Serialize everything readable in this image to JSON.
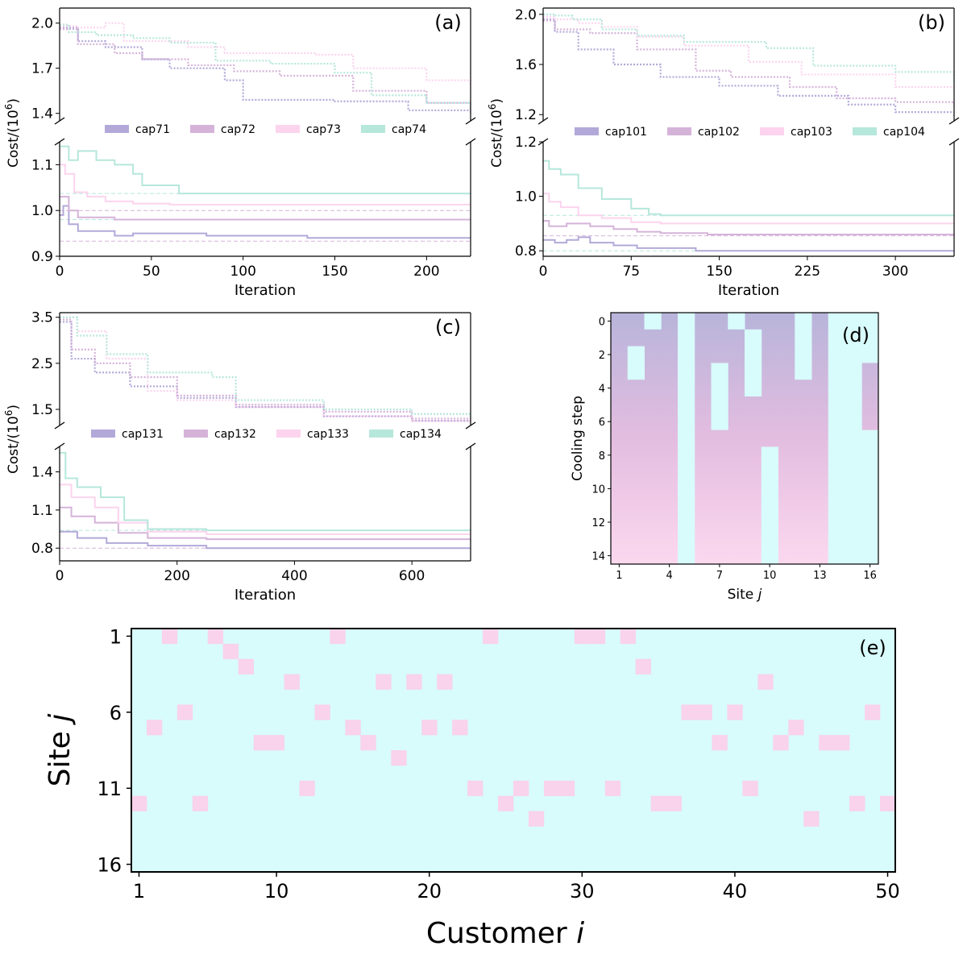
{
  "colors": {
    "purple": "#b3a9d9",
    "mauve": "#d5b3d9",
    "pink": "#fcd4ee",
    "teal": "#b6e7db",
    "cyan": "#d8fbfb",
    "cellpink": "#f9d2ec"
  },
  "chart_data": [
    {
      "panel": "(a)",
      "type": "line",
      "ylabel": "Cost/(10^6)",
      "xlabel": "Iteration",
      "xlim": [
        0,
        224
      ],
      "xticks": [
        0,
        50,
        100,
        150,
        200
      ],
      "upper": {
        "ylim": [
          1.35,
          2.1
        ],
        "yticks": [
          1.4,
          1.7,
          2.0
        ],
        "series": [
          {
            "name": "cap71",
            "x": [
              0,
              10,
              25,
              45,
              60,
              90,
              100,
              150,
              190,
              224
            ],
            "y": [
              1.97,
              1.88,
              1.84,
              1.76,
              1.7,
              1.62,
              1.49,
              1.48,
              1.42,
              1.4
            ]
          },
          {
            "name": "cap72",
            "x": [
              0,
              10,
              30,
              45,
              70,
              95,
              120,
              160,
              200,
              224
            ],
            "y": [
              1.96,
              1.86,
              1.8,
              1.76,
              1.72,
              1.68,
              1.65,
              1.55,
              1.47,
              1.4
            ]
          },
          {
            "name": "cap73",
            "x": [
              0,
              10,
              25,
              35,
              70,
              90,
              140,
              160,
              200,
              224
            ],
            "y": [
              1.98,
              1.97,
              2.0,
              1.88,
              1.84,
              1.8,
              1.79,
              1.7,
              1.62,
              1.59
            ]
          },
          {
            "name": "cap74",
            "x": [
              0,
              5,
              20,
              40,
              60,
              85,
              115,
              150,
              170,
              200,
              224
            ],
            "y": [
              1.99,
              1.94,
              1.92,
              1.9,
              1.87,
              1.75,
              1.73,
              1.67,
              1.52,
              1.47,
              1.43
            ]
          }
        ]
      },
      "lower": {
        "ylim": [
          0.9,
          1.15
        ],
        "yticks": [
          0.9,
          1.0,
          1.1
        ],
        "series": [
          {
            "name": "cap71",
            "x": [
              0,
              2,
              5,
              10,
              30,
              40,
              80,
              135,
              224
            ],
            "y": [
              0.99,
              1.01,
              0.97,
              0.955,
              0.945,
              0.95,
              0.945,
              0.94,
              0.94
            ]
          },
          {
            "name": "cap72",
            "x": [
              0,
              5,
              10,
              30,
              60,
              190,
              224
            ],
            "y": [
              1.03,
              1.0,
              0.985,
              0.98,
              0.98,
              0.98,
              0.98
            ]
          },
          {
            "name": "cap73",
            "x": [
              0,
              3,
              8,
              15,
              25,
              40,
              60,
              224
            ],
            "y": [
              1.1,
              1.08,
              1.04,
              1.03,
              1.02,
              1.015,
              1.013,
              1.013
            ]
          },
          {
            "name": "cap74",
            "x": [
              0,
              5,
              10,
              20,
              30,
              40,
              45,
              60,
              65,
              224
            ],
            "y": [
              1.14,
              1.11,
              1.13,
              1.11,
              1.1,
              1.08,
              1.055,
              1.055,
              1.037,
              1.037
            ]
          }
        ],
        "references": [
          1.037,
          1.0,
          0.98,
          0.933
        ]
      }
    },
    {
      "panel": "(b)",
      "type": "line",
      "ylabel": "Cost/(10^6)",
      "xlabel": "Iteration",
      "xlim": [
        0,
        350
      ],
      "xticks": [
        0,
        75,
        150,
        225,
        300
      ],
      "upper": {
        "ylim": [
          1.15,
          2.05
        ],
        "yticks": [
          1.2,
          1.6,
          2.0
        ],
        "series": [
          {
            "name": "cap101",
            "x": [
              0,
              10,
              30,
              60,
              100,
              150,
              200,
              260,
              300,
              350
            ],
            "y": [
              1.96,
              1.86,
              1.72,
              1.6,
              1.5,
              1.43,
              1.35,
              1.28,
              1.22,
              1.18
            ]
          },
          {
            "name": "cap102",
            "x": [
              0,
              10,
              40,
              80,
              130,
              160,
              210,
              250,
              300,
              350
            ],
            "y": [
              1.95,
              1.88,
              1.85,
              1.72,
              1.55,
              1.5,
              1.42,
              1.33,
              1.3,
              1.26
            ]
          },
          {
            "name": "cap103",
            "x": [
              0,
              10,
              30,
              50,
              80,
              120,
              175,
              220,
              300,
              350
            ],
            "y": [
              1.98,
              1.96,
              1.93,
              1.9,
              1.82,
              1.75,
              1.62,
              1.52,
              1.42,
              1.37
            ]
          },
          {
            "name": "cap104",
            "x": [
              0,
              10,
              25,
              50,
              80,
              120,
              190,
              230,
              300,
              350
            ],
            "y": [
              2.0,
              1.99,
              1.96,
              1.88,
              1.83,
              1.78,
              1.73,
              1.59,
              1.54,
              1.45
            ]
          }
        ]
      },
      "lower": {
        "ylim": [
          0.78,
          1.2
        ],
        "yticks": [
          0.8,
          1.0,
          1.2
        ],
        "series": [
          {
            "name": "cap101",
            "x": [
              0,
              10,
              20,
              30,
              40,
              60,
              80,
              130,
              350
            ],
            "y": [
              0.84,
              0.83,
              0.84,
              0.85,
              0.83,
              0.82,
              0.81,
              0.8,
              0.8
            ]
          },
          {
            "name": "cap102",
            "x": [
              0,
              5,
              20,
              40,
              60,
              80,
              100,
              140,
              350
            ],
            "y": [
              0.91,
              0.89,
              0.9,
              0.89,
              0.88,
              0.87,
              0.865,
              0.86,
              0.855
            ]
          },
          {
            "name": "cap103",
            "x": [
              0,
              5,
              15,
              30,
              50,
              75,
              100,
              150,
              350
            ],
            "y": [
              1.01,
              0.98,
              0.96,
              0.93,
              0.92,
              0.905,
              0.9,
              0.9,
              0.9
            ]
          },
          {
            "name": "cap104",
            "x": [
              0,
              5,
              15,
              30,
              50,
              75,
              90,
              100,
              150,
              350
            ],
            "y": [
              1.13,
              1.1,
              1.08,
              1.03,
              0.99,
              0.955,
              0.935,
              0.93,
              0.93,
              0.93
            ]
          }
        ],
        "references": [
          0.93,
          0.855,
          0.8
        ]
      }
    },
    {
      "panel": "(c)",
      "type": "line",
      "ylabel": "Cost/(10^6)",
      "xlabel": "Iteration",
      "xlim": [
        0,
        700
      ],
      "xticks": [
        0,
        200,
        400,
        600
      ],
      "upper": {
        "ylim": [
          1.15,
          3.6
        ],
        "yticks": [
          1.5,
          2.5,
          3.5
        ],
        "series": [
          {
            "name": "cap131",
            "x": [
              0,
              20,
              60,
              120,
              200,
              300,
              450,
              600,
              700
            ],
            "y": [
              3.4,
              2.6,
              2.3,
              2.0,
              1.75,
              1.55,
              1.35,
              1.25,
              1.2
            ]
          },
          {
            "name": "cap132",
            "x": [
              0,
              20,
              60,
              120,
              200,
              300,
              450,
              600,
              700
            ],
            "y": [
              3.45,
              2.8,
              2.5,
              2.2,
              1.8,
              1.6,
              1.45,
              1.3,
              1.2
            ]
          },
          {
            "name": "cap133",
            "x": [
              0,
              30,
              80,
              150,
              200,
              300,
              450,
              600,
              700
            ],
            "y": [
              3.5,
              3.2,
              2.6,
              1.9,
              1.7,
              1.55,
              1.35,
              1.25,
              1.2
            ]
          },
          {
            "name": "cap134",
            "x": [
              0,
              30,
              80,
              150,
              260,
              300,
              450,
              600,
              700
            ],
            "y": [
              3.5,
              3.1,
              2.7,
              2.3,
              2.2,
              1.7,
              1.5,
              1.4,
              1.3
            ]
          }
        ]
      },
      "lower": {
        "ylim": [
          0.7,
          1.6
        ],
        "yticks": [
          0.8,
          1.1,
          1.4
        ],
        "series": [
          {
            "name": "cap131",
            "x": [
              0,
              30,
              80,
              150,
              250,
              700
            ],
            "y": [
              0.93,
              0.88,
              0.84,
              0.82,
              0.8,
              0.8
            ]
          },
          {
            "name": "cap132",
            "x": [
              0,
              20,
              60,
              100,
              150,
              250,
              700
            ],
            "y": [
              1.12,
              1.05,
              1.0,
              0.92,
              0.88,
              0.87,
              0.86
            ]
          },
          {
            "name": "cap133",
            "x": [
              0,
              20,
              60,
              100,
              150,
              250,
              700
            ],
            "y": [
              1.3,
              1.2,
              1.12,
              1.0,
              0.93,
              0.91,
              0.9
            ]
          },
          {
            "name": "cap134",
            "x": [
              0,
              10,
              30,
              70,
              110,
              150,
              250,
              700
            ],
            "y": [
              1.55,
              1.35,
              1.28,
              1.2,
              1.02,
              0.95,
              0.94,
              0.94
            ]
          }
        ],
        "references": [
          0.94,
          0.8
        ]
      }
    },
    {
      "panel": "(d)",
      "type": "heatmap",
      "xlabel": "Site",
      "xlabel_italic": "j",
      "ylabel": "Cooling step",
      "xticks": [
        1,
        4,
        7,
        10,
        13,
        16
      ],
      "yticks": [
        0,
        2,
        4,
        6,
        8,
        10,
        12,
        14
      ],
      "rows": 15,
      "cols": 16,
      "cyan_cells": "cyan cells (row ranges per column); columns 5, 14, 15 fully cyan; other cells gradient purple→pink",
      "cyan_ranges": [
        {
          "col": 2,
          "from": 2,
          "to": 3
        },
        {
          "col": 3,
          "from": 0,
          "to": 0
        },
        {
          "col": 5,
          "from": 0,
          "to": 14
        },
        {
          "col": 7,
          "from": 3,
          "to": 6
        },
        {
          "col": 8,
          "from": 0,
          "to": 0
        },
        {
          "col": 9,
          "from": 1,
          "to": 4
        },
        {
          "col": 10,
          "from": 8,
          "to": 14
        },
        {
          "col": 12,
          "from": 0,
          "to": 3
        },
        {
          "col": 14,
          "from": 0,
          "to": 14
        },
        {
          "col": 15,
          "from": 0,
          "to": 14
        },
        {
          "col": 16,
          "from": 0,
          "to": 2
        },
        {
          "col": 16,
          "from": 7,
          "to": 14
        }
      ]
    },
    {
      "panel": "(e)",
      "type": "heatmap",
      "xlabel": "Customer",
      "xlabel_italic": "i",
      "ylabel": "Site",
      "ylabel_italic": "j",
      "xticks": [
        1,
        10,
        20,
        30,
        40,
        50
      ],
      "yticks": [
        1,
        6,
        11,
        16
      ],
      "customers": 50,
      "sites": 16,
      "assignment": [
        12,
        7,
        1,
        6,
        12,
        1,
        2,
        3,
        8,
        8,
        4,
        11,
        6,
        1,
        7,
        8,
        4,
        9,
        4,
        7,
        4,
        7,
        11,
        1,
        12,
        11,
        13,
        11,
        11,
        1,
        1,
        11,
        1,
        3,
        12,
        12,
        6,
        6,
        8,
        6,
        11,
        4,
        8,
        7,
        13,
        8,
        8,
        12,
        6,
        12
      ]
    }
  ],
  "legend_a": [
    "cap71",
    "cap72",
    "cap73",
    "cap74"
  ],
  "legend_b": [
    "cap101",
    "cap102",
    "cap103",
    "cap104"
  ],
  "legend_c": [
    "cap131",
    "cap132",
    "cap133",
    "cap134"
  ],
  "panel_labels": {
    "a": "(a)",
    "b": "(b)",
    "c": "(c)",
    "d": "(d)",
    "e": "(e)"
  },
  "axis_text": {
    "cost": "Cost/(10",
    "cost_exp": "6",
    "cost_end": ")",
    "iteration": "Iteration",
    "site": "Site ",
    "j": "j",
    "cooling": "Cooling step",
    "customer": "Customer ",
    "i": "i"
  }
}
